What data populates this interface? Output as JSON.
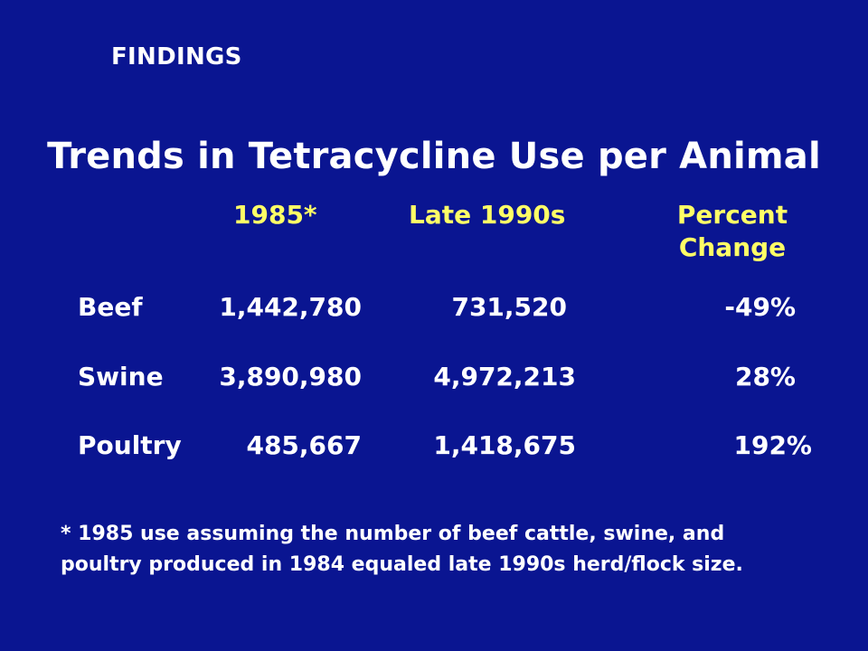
{
  "section_label": "FINDINGS",
  "title": "Trends in Tetracycline Use per Animal",
  "columns": {
    "col1": "1985*",
    "col2": "Late 1990s",
    "col3_line1": "Percent",
    "col3_line2": "Change"
  },
  "rows": [
    {
      "label": "Beef",
      "v1985": "1,442,780",
      "vlate": "731,520",
      "pct": "-49%"
    },
    {
      "label": "Swine",
      "v1985": "3,890,980",
      "vlate": "4,972,213",
      "pct": "28%"
    },
    {
      "label": "Poultry",
      "v1985": "485,667",
      "vlate": "1,418,675",
      "pct": "192%"
    }
  ],
  "footnote": {
    "line1": "*  1985 use assuming the number of beef cattle, swine, and",
    "line2": "poultry produced in 1984 equaled late 1990s herd/flock size."
  },
  "colors": {
    "background": "#0a1591",
    "header_text": "#ffff66",
    "body_text": "#ffffff"
  }
}
